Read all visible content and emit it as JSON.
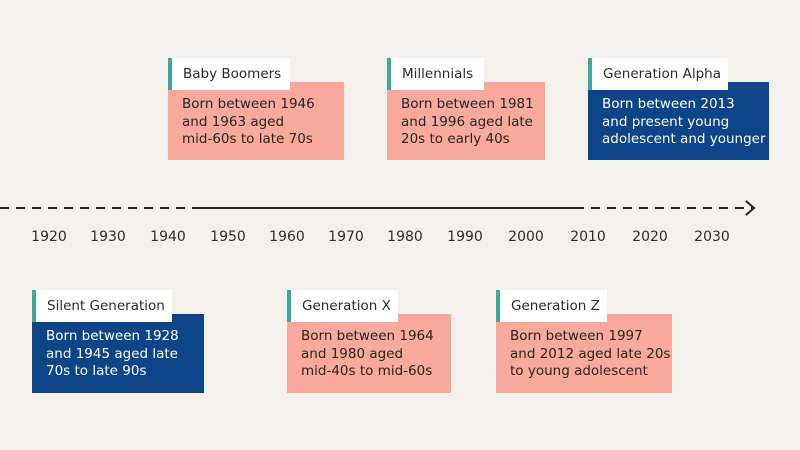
{
  "timeline": {
    "years": [
      "1920",
      "1930",
      "1940",
      "1950",
      "1960",
      "1970",
      "1980",
      "1990",
      "2000",
      "2010",
      "2020",
      "2030"
    ]
  },
  "generations": [
    {
      "name": "Baby Boomers",
      "lines": [
        "Born between 1946",
        "and 1963 aged",
        "mid-60s to late 70s"
      ],
      "color": "peach"
    },
    {
      "name": "Millennials",
      "lines": [
        "Born between 1981",
        "and 1996 aged late",
        "20s to early 40s"
      ],
      "color": "peach"
    },
    {
      "name": "Generation Alpha",
      "lines": [
        "Born between 2013",
        "and present young",
        "adolescent and younger"
      ],
      "color": "navy"
    },
    {
      "name": "Silent Generation",
      "lines": [
        "Born between 1928",
        "and 1945 aged late",
        "70s to late 90s"
      ],
      "color": "navy"
    },
    {
      "name": "Generation X",
      "lines": [
        "Born between 1964",
        "and 1980 aged",
        "mid-40s to mid-60s"
      ],
      "color": "peach"
    },
    {
      "name": "Generation Z",
      "lines": [
        "Born between 1997",
        "and 2012 aged late 20s",
        "to young adolescent"
      ],
      "color": "peach"
    }
  ],
  "colors": {
    "peach": "#f9a99c",
    "navy": "#0e4488",
    "accent": "#3aa99c",
    "background": "#f4f1ed"
  }
}
